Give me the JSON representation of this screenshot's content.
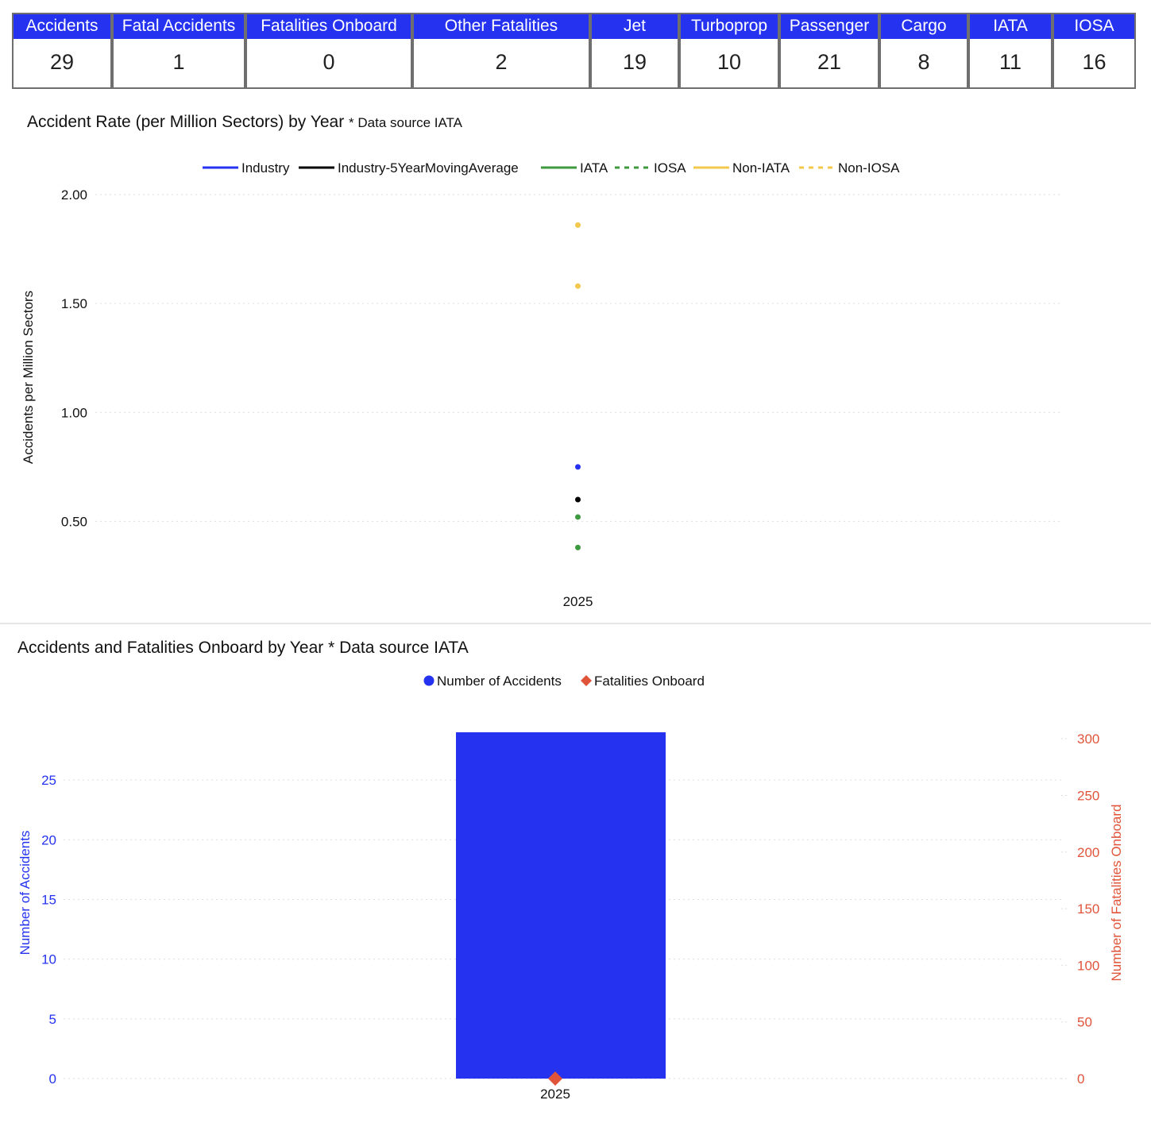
{
  "colors": {
    "kpi_header": "#2533f0",
    "industry": "#2533f0",
    "industry_5yr": "#000000",
    "iata": "#3e9a3e",
    "iosa": "#3e9a3e",
    "non_iata": "#f2c94c",
    "non_iosa": "#f2c94c",
    "accidents_bar": "#2533f0",
    "fatalities_marker": "#e0553a"
  },
  "kpis": [
    {
      "label": "Accidents",
      "value": "29"
    },
    {
      "label": "Fatal Accidents",
      "value": "1"
    },
    {
      "label": "Fatalities Onboard",
      "value": "0"
    },
    {
      "label": "Other Fatalities",
      "value": "2"
    },
    {
      "label": "Jet",
      "value": "19"
    },
    {
      "label": "Turboprop",
      "value": "10"
    },
    {
      "label": "Passenger",
      "value": "21"
    },
    {
      "label": "Cargo",
      "value": "8"
    },
    {
      "label": "IATA",
      "value": "11"
    },
    {
      "label": "IOSA",
      "value": "16"
    }
  ],
  "chart_data": [
    {
      "type": "line",
      "title": "Accident Rate (per Million Sectors) by Year",
      "subtitle": "* Data source IATA",
      "xlabel": "",
      "ylabel": "Accidents per Million Sectors",
      "x": [
        "2025"
      ],
      "ylim": [
        0.25,
        2.0
      ],
      "yticks": [
        "0.50",
        "1.00",
        "1.50",
        "2.00"
      ],
      "ytick_values": [
        0.5,
        1.0,
        1.5,
        2.0
      ],
      "grid": true,
      "legend_position": "top-center",
      "series": [
        {
          "name": "Industry",
          "values": [
            0.75
          ],
          "color": "#2533f0",
          "dash": "solid"
        },
        {
          "name": "Industry-5YearMovingAverage",
          "values": [
            0.6
          ],
          "color": "#000000",
          "dash": "solid"
        },
        {
          "name": "IATA",
          "values": [
            0.38
          ],
          "color": "#3e9a3e",
          "dash": "solid"
        },
        {
          "name": "IOSA",
          "values": [
            0.52
          ],
          "color": "#3e9a3e",
          "dash": "dashed"
        },
        {
          "name": "Non-IATA",
          "values": [
            1.86
          ],
          "color": "#f2c94c",
          "dash": "solid"
        },
        {
          "name": "Non-IOSA",
          "values": [
            1.58
          ],
          "color": "#f2c94c",
          "dash": "dashed"
        }
      ]
    },
    {
      "type": "bar",
      "title": "Accidents and Fatalities Onboard by Year * Data source IATA",
      "categories": [
        "2025"
      ],
      "xlabel": "",
      "ylabel": "Number of Accidents",
      "y2label": "Number of Fatalities Onboard",
      "ylim": [
        0,
        29
      ],
      "y2lim": [
        0,
        305
      ],
      "yticks": [
        "0",
        "5",
        "10",
        "15",
        "20",
        "25"
      ],
      "ytick_values": [
        0,
        5,
        10,
        15,
        20,
        25
      ],
      "y2ticks": [
        "0",
        "50",
        "100",
        "150",
        "200",
        "250",
        "300"
      ],
      "y2tick_values": [
        0,
        50,
        100,
        150,
        200,
        250,
        300
      ],
      "grid": true,
      "legend_position": "top-center",
      "series": [
        {
          "name": "Number of Accidents",
          "values": [
            29
          ],
          "axis": "left",
          "kind": "bar",
          "color": "#2533f0"
        },
        {
          "name": "Fatalities Onboard",
          "values": [
            0
          ],
          "axis": "right",
          "kind": "marker",
          "color": "#e0553a"
        }
      ]
    }
  ]
}
